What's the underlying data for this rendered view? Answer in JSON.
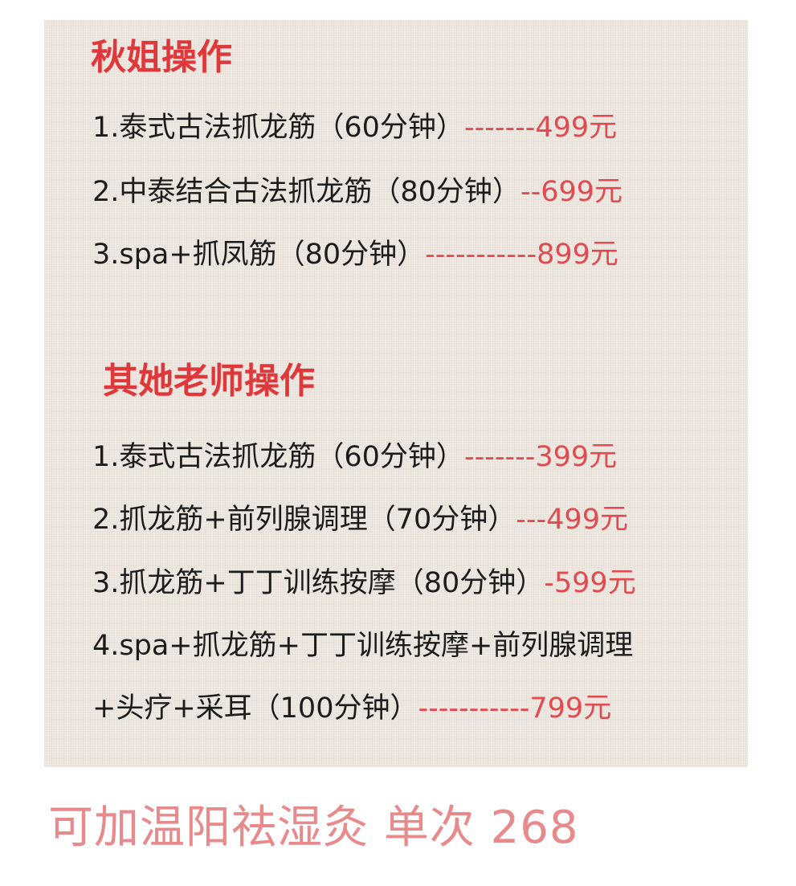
{
  "section1": {
    "title": "秋姐操作",
    "items": [
      {
        "text": "1.泰式古法抓龙筋（60分钟）",
        "price": "-------499元"
      },
      {
        "text": "2.中泰结合古法抓龙筋（80分钟）",
        "price": "--699元"
      },
      {
        "text": "3.spa+抓凤筋（80分钟）",
        "price": "-----------899元"
      }
    ]
  },
  "section2": {
    "title": "其她老师操作",
    "items": [
      {
        "text": "1.泰式古法抓龙筋（60分钟）",
        "price": "-------399元"
      },
      {
        "text": "2.抓龙筋+前列腺调理（70分钟）",
        "price": "---499元"
      },
      {
        "text": "3.抓龙筋+丁丁训练按摩（80分钟）",
        "price": "-599元"
      },
      {
        "text": "4.spa+抓龙筋+丁丁训练按摩+前列腺调理",
        "price": ""
      },
      {
        "text": "+头疗+采耳（100分钟）",
        "price": "-----------799元"
      }
    ]
  },
  "footer": "可加温阳祛湿灸 单次 268",
  "colors": {
    "title": "#e0383a",
    "price": "#e04a50",
    "footer": "#e8898c",
    "panel": "#ece5de"
  }
}
